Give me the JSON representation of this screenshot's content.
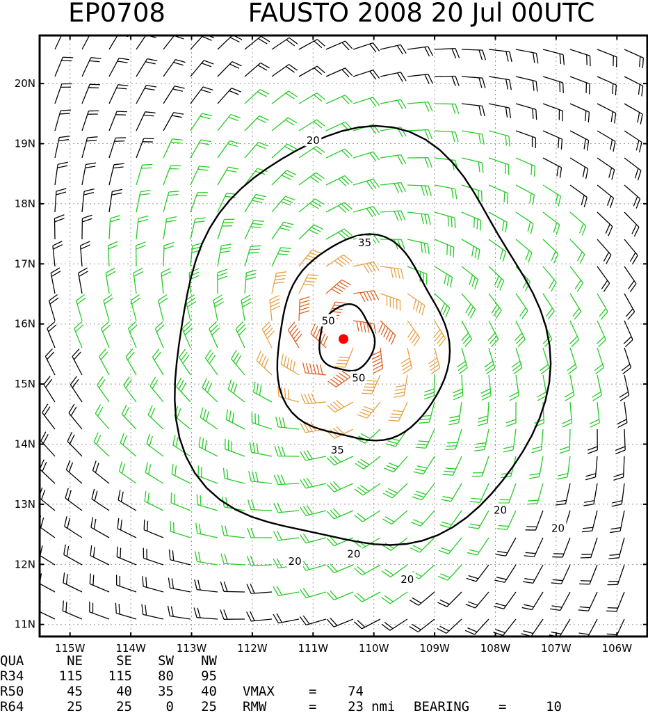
{
  "title": {
    "storm_id": "EP0708",
    "main": "FAUSTO 2008 20 Jul 00UTC"
  },
  "chart_data": {
    "type": "wind_field_map",
    "xlim": [
      -115.5,
      -105.5
    ],
    "ylim": [
      10.8,
      20.8
    ],
    "x_ticks": [
      -115,
      -114,
      -113,
      -112,
      -111,
      -110,
      -109,
      -108,
      -107,
      -106
    ],
    "x_tick_labels": [
      "115W",
      "114W",
      "113W",
      "112W",
      "111W",
      "110W",
      "109W",
      "108W",
      "107W",
      "106W"
    ],
    "y_ticks": [
      11,
      12,
      13,
      14,
      15,
      16,
      17,
      18,
      19,
      20
    ],
    "y_tick_labels": [
      "11N",
      "12N",
      "13N",
      "14N",
      "15N",
      "16N",
      "17N",
      "18N",
      "19N",
      "20N"
    ],
    "grid": true,
    "center": {
      "lon": -110.5,
      "lat": 15.75
    },
    "contours": [
      {
        "value": 20,
        "label": "20",
        "approx_lon_range": [
          -113.3,
          -107.2
        ],
        "approx_lat_range": [
          12.2,
          19.1
        ]
      },
      {
        "value": 35,
        "label": "35",
        "approx_lon_range": [
          -111.6,
          -108.8
        ],
        "approx_lat_range": [
          14.0,
          17.4
        ]
      },
      {
        "value": 50,
        "label": "50",
        "approx_lon_range": [
          -110.9,
          -110.0
        ],
        "approx_lat_range": [
          15.2,
          16.3
        ]
      }
    ],
    "contour_labels": [
      {
        "text": "20",
        "lon": -111.0,
        "lat": 19.05
      },
      {
        "text": "35",
        "lon": -110.15,
        "lat": 17.35
      },
      {
        "text": "50",
        "lon": -110.75,
        "lat": 16.05
      },
      {
        "text": "50",
        "lon": -110.25,
        "lat": 15.1
      },
      {
        "text": "35",
        "lon": -110.6,
        "lat": 13.9
      },
      {
        "text": "20",
        "lon": -107.92,
        "lat": 12.9
      },
      {
        "text": "20",
        "lon": -106.97,
        "lat": 12.6
      },
      {
        "text": "20",
        "lon": -110.33,
        "lat": 12.17
      },
      {
        "text": "20",
        "lon": -111.3,
        "lat": 12.05
      },
      {
        "text": "20",
        "lon": -109.45,
        "lat": 11.75
      }
    ],
    "barb_colors": {
      "weak": "#000000",
      "gale": "#22cc22",
      "storm": "#e8a040",
      "hurricane": "#e06020"
    },
    "center_color": "#ff0000",
    "peak_wind_kt": 74,
    "rmw_nmi": 23
  },
  "table": {
    "header": [
      "QUA",
      "NE",
      "SE",
      "SW",
      "NW"
    ],
    "rows": [
      [
        "R34",
        "115",
        "115",
        "80",
        "95"
      ],
      [
        "R50",
        "45",
        "40",
        "35",
        "40"
      ],
      [
        "R64",
        "25",
        "25",
        "0",
        "25"
      ]
    ],
    "vmax_label": "VMAX",
    "vmax_eq": "=",
    "vmax_value": "74",
    "rmw_label": "RMW",
    "rmw_eq": "=",
    "rmw_value": "23",
    "rmw_unit": "nmi",
    "bearing_label": "BEARING",
    "bearing_eq": "=",
    "bearing_value": "10"
  }
}
